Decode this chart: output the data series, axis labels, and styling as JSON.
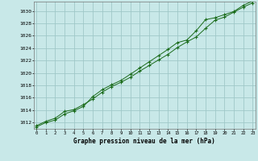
{
  "xlabel": "Graphe pression niveau de la mer (hPa)",
  "bg_color": "#c8e8e8",
  "grid_color": "#a0c8c8",
  "line_color": "#1a6b1a",
  "marker_color": "#1a6b1a",
  "x_ticks": [
    0,
    1,
    2,
    3,
    4,
    5,
    6,
    7,
    8,
    9,
    10,
    11,
    12,
    13,
    14,
    15,
    16,
    17,
    18,
    19,
    20,
    21,
    22,
    23
  ],
  "x_tick_labels": [
    "0",
    "1",
    "2",
    "3",
    "4",
    "5",
    "6",
    "7",
    "8",
    "9",
    "10",
    "11",
    "12",
    "13",
    "14",
    "15",
    "16",
    "17",
    "18",
    "19",
    "20",
    "21",
    "22",
    "23"
  ],
  "y_ticks": [
    1012,
    1014,
    1016,
    1018,
    1020,
    1022,
    1024,
    1026,
    1028,
    1030
  ],
  "ylim": [
    1011.0,
    1031.5
  ],
  "xlim": [
    -0.3,
    23.3
  ],
  "series1": [
    1011.5,
    1012.2,
    1012.7,
    1013.8,
    1014.1,
    1014.9,
    1015.8,
    1016.9,
    1017.8,
    1018.5,
    1019.3,
    1020.3,
    1021.2,
    1022.1,
    1023.0,
    1024.1,
    1025.0,
    1025.8,
    1027.2,
    1028.5,
    1029.0,
    1029.8,
    1030.6,
    1031.3
  ],
  "series2": [
    1011.3,
    1012.0,
    1012.4,
    1013.4,
    1013.9,
    1014.6,
    1016.2,
    1017.3,
    1018.1,
    1018.8,
    1019.8,
    1020.8,
    1021.8,
    1022.8,
    1023.8,
    1024.9,
    1025.3,
    1026.8,
    1028.6,
    1028.9,
    1029.4,
    1029.9,
    1030.9,
    1031.6
  ]
}
